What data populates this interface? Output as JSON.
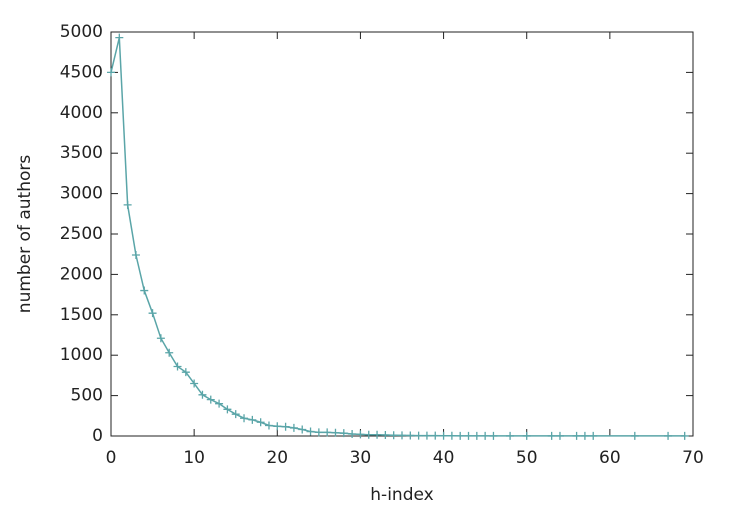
{
  "chart_data": {
    "type": "line",
    "xlabel": "h-index",
    "ylabel": "number of authors",
    "x": [
      0,
      1,
      2,
      3,
      4,
      5,
      6,
      7,
      8,
      9,
      10,
      11,
      12,
      13,
      14,
      15,
      16,
      17,
      18,
      19,
      20,
      21,
      22,
      23,
      24,
      25,
      26,
      27,
      28,
      29,
      30,
      31,
      32,
      33,
      34,
      35,
      36,
      37,
      38,
      39,
      40,
      41,
      42,
      43,
      44,
      45,
      46,
      48,
      50,
      53,
      54,
      56,
      57,
      58,
      63,
      67,
      69
    ],
    "series": [
      {
        "color": "#5aa5a8",
        "values": [
          4500,
          4930,
          2860,
          2240,
          1800,
          1520,
          1210,
          1030,
          860,
          790,
          650,
          510,
          450,
          400,
          330,
          270,
          220,
          200,
          170,
          130,
          120,
          115,
          100,
          80,
          55,
          45,
          45,
          40,
          35,
          25,
          20,
          15,
          15,
          12,
          10,
          8,
          6,
          5,
          5,
          4,
          3,
          3,
          2,
          2,
          2,
          2,
          1,
          1,
          1,
          1,
          1,
          1,
          1,
          1,
          1,
          1,
          1
        ]
      }
    ],
    "xlim": [
      0,
      70
    ],
    "xticks": [
      0,
      10,
      20,
      30,
      40,
      50,
      60,
      70
    ],
    "ylim": [
      0,
      5000
    ],
    "yticks": [
      0,
      500,
      1000,
      1500,
      2000,
      2500,
      3000,
      3500,
      4000,
      4500,
      5000
    ]
  }
}
